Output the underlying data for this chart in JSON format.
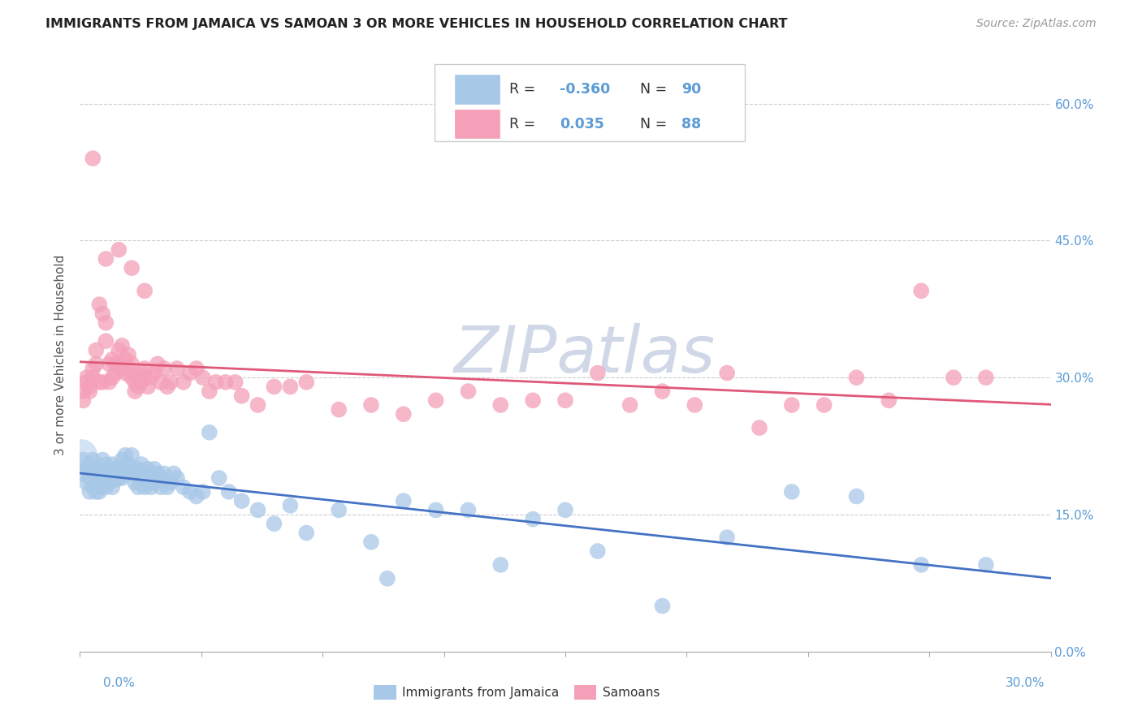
{
  "title": "IMMIGRANTS FROM JAMAICA VS SAMOAN 3 OR MORE VEHICLES IN HOUSEHOLD CORRELATION CHART",
  "source": "Source: ZipAtlas.com",
  "ylabel": "3 or more Vehicles in Household",
  "xmin": 0.0,
  "xmax": 0.3,
  "ymin": 0.0,
  "ymax": 0.65,
  "yticks": [
    0.0,
    0.15,
    0.3,
    0.45,
    0.6
  ],
  "color_jamaica": "#a8c8e8",
  "color_samoan": "#f4a0b8",
  "color_line_jamaica": "#4472c4",
  "color_line_samoan": "#e05878",
  "color_title": "#222222",
  "color_source": "#999999",
  "color_right_axis": "#5b9bd5",
  "watermark_color": "#d0d8e8",
  "jamaica_x": [
    0.001,
    0.001,
    0.002,
    0.002,
    0.003,
    0.003,
    0.003,
    0.004,
    0.004,
    0.004,
    0.005,
    0.005,
    0.005,
    0.006,
    0.006,
    0.006,
    0.007,
    0.007,
    0.007,
    0.008,
    0.008,
    0.008,
    0.009,
    0.009,
    0.01,
    0.01,
    0.01,
    0.011,
    0.011,
    0.012,
    0.012,
    0.013,
    0.013,
    0.013,
    0.014,
    0.014,
    0.015,
    0.015,
    0.016,
    0.016,
    0.017,
    0.017,
    0.018,
    0.018,
    0.019,
    0.019,
    0.02,
    0.02,
    0.021,
    0.021,
    0.022,
    0.022,
    0.023,
    0.023,
    0.024,
    0.025,
    0.025,
    0.026,
    0.027,
    0.028,
    0.029,
    0.03,
    0.032,
    0.034,
    0.036,
    0.038,
    0.04,
    0.043,
    0.046,
    0.05,
    0.055,
    0.06,
    0.065,
    0.07,
    0.08,
    0.09,
    0.1,
    0.12,
    0.14,
    0.16,
    0.18,
    0.2,
    0.22,
    0.24,
    0.26,
    0.28,
    0.095,
    0.11,
    0.13,
    0.15
  ],
  "jamaica_y": [
    0.21,
    0.195,
    0.2,
    0.185,
    0.205,
    0.19,
    0.175,
    0.21,
    0.195,
    0.18,
    0.2,
    0.185,
    0.175,
    0.195,
    0.18,
    0.175,
    0.21,
    0.195,
    0.185,
    0.205,
    0.19,
    0.18,
    0.2,
    0.185,
    0.205,
    0.195,
    0.18,
    0.2,
    0.188,
    0.2,
    0.19,
    0.195,
    0.21,
    0.19,
    0.195,
    0.215,
    0.205,
    0.195,
    0.215,
    0.2,
    0.195,
    0.185,
    0.2,
    0.18,
    0.205,
    0.19,
    0.195,
    0.18,
    0.2,
    0.185,
    0.195,
    0.18,
    0.2,
    0.185,
    0.195,
    0.19,
    0.18,
    0.195,
    0.18,
    0.185,
    0.195,
    0.19,
    0.18,
    0.175,
    0.17,
    0.175,
    0.24,
    0.19,
    0.175,
    0.165,
    0.155,
    0.14,
    0.16,
    0.13,
    0.155,
    0.12,
    0.165,
    0.155,
    0.145,
    0.11,
    0.05,
    0.125,
    0.175,
    0.17,
    0.095,
    0.095,
    0.08,
    0.155,
    0.095,
    0.155
  ],
  "samoan_x": [
    0.001,
    0.001,
    0.002,
    0.002,
    0.003,
    0.003,
    0.004,
    0.004,
    0.005,
    0.005,
    0.006,
    0.006,
    0.007,
    0.007,
    0.008,
    0.008,
    0.009,
    0.009,
    0.01,
    0.01,
    0.011,
    0.011,
    0.012,
    0.012,
    0.013,
    0.013,
    0.014,
    0.014,
    0.015,
    0.015,
    0.016,
    0.016,
    0.017,
    0.017,
    0.018,
    0.018,
    0.019,
    0.019,
    0.02,
    0.02,
    0.021,
    0.022,
    0.023,
    0.024,
    0.025,
    0.026,
    0.027,
    0.028,
    0.03,
    0.032,
    0.034,
    0.036,
    0.038,
    0.04,
    0.042,
    0.045,
    0.048,
    0.05,
    0.055,
    0.06,
    0.065,
    0.07,
    0.08,
    0.09,
    0.1,
    0.11,
    0.12,
    0.13,
    0.14,
    0.15,
    0.16,
    0.17,
    0.18,
    0.19,
    0.2,
    0.21,
    0.22,
    0.23,
    0.24,
    0.25,
    0.26,
    0.27,
    0.28,
    0.004,
    0.008,
    0.012,
    0.016,
    0.02
  ],
  "samoan_y": [
    0.285,
    0.275,
    0.295,
    0.3,
    0.29,
    0.285,
    0.31,
    0.3,
    0.33,
    0.315,
    0.295,
    0.38,
    0.295,
    0.37,
    0.36,
    0.34,
    0.315,
    0.295,
    0.32,
    0.3,
    0.315,
    0.305,
    0.33,
    0.315,
    0.335,
    0.31,
    0.32,
    0.305,
    0.325,
    0.31,
    0.3,
    0.315,
    0.295,
    0.285,
    0.3,
    0.29,
    0.305,
    0.295,
    0.31,
    0.3,
    0.29,
    0.3,
    0.305,
    0.315,
    0.295,
    0.31,
    0.29,
    0.295,
    0.31,
    0.295,
    0.305,
    0.31,
    0.3,
    0.285,
    0.295,
    0.295,
    0.295,
    0.28,
    0.27,
    0.29,
    0.29,
    0.295,
    0.265,
    0.27,
    0.26,
    0.275,
    0.285,
    0.27,
    0.275,
    0.275,
    0.305,
    0.27,
    0.285,
    0.27,
    0.305,
    0.245,
    0.27,
    0.27,
    0.3,
    0.275,
    0.395,
    0.3,
    0.3,
    0.54,
    0.43,
    0.44,
    0.42,
    0.395
  ],
  "legend_r1_label": "R = -0.360",
  "legend_n1_label": "N = 90",
  "legend_r2_label": "R =  0.035",
  "legend_n2_label": "N = 88",
  "bottom_label1": "Immigrants from Jamaica",
  "bottom_label2": "Samoans"
}
